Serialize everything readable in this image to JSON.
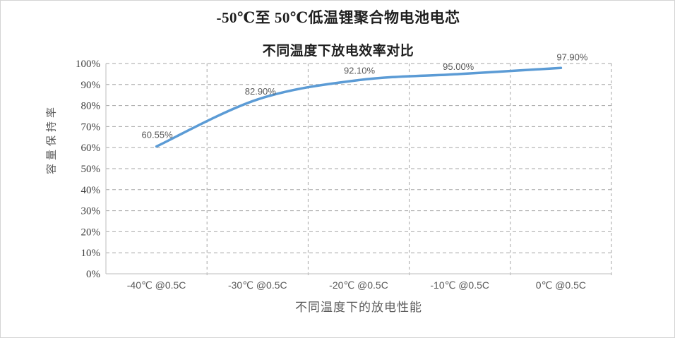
{
  "chart_data": {
    "type": "line",
    "title": "-50℃至 50℃低温锂聚合物电池电芯",
    "subtitle": "不同温度下放电效率对比",
    "categories": [
      "-40℃ @0.5C",
      "-30℃ @0.5C",
      "-20℃ @0.5C",
      "-10℃ @0.5C",
      "0℃ @0.5C"
    ],
    "values": [
      60.55,
      82.9,
      92.1,
      95.0,
      97.9
    ],
    "data_labels": [
      "60.55%",
      "82.90%",
      "92.10%",
      "95.00%",
      "97.90%"
    ],
    "xlabel": "不同温度下的放电性能",
    "ylabel": "容量保持率",
    "ylim": [
      0,
      100
    ],
    "ytick_step": 10,
    "ytick_suffix": "%",
    "grid": {
      "horizontal": true,
      "vertical": true,
      "style": "dashed"
    },
    "legend": "none",
    "markers": "none",
    "smooth": true,
    "line_color": "#5B9BD5",
    "grid_color": "#a6a6a6",
    "axis_color": "#c9c9c9"
  }
}
